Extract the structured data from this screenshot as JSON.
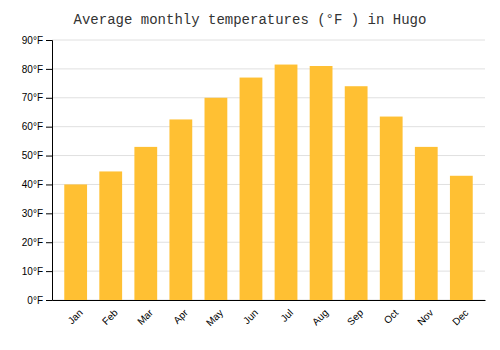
{
  "chart_data": {
    "type": "bar",
    "title": "Average monthly temperatures (°F ) in Hugo",
    "categories": [
      "Jan",
      "Feb",
      "Mar",
      "Apr",
      "May",
      "Jun",
      "Jul",
      "Aug",
      "Sep",
      "Oct",
      "Nov",
      "Dec"
    ],
    "values": [
      40,
      44.5,
      53,
      62.5,
      70,
      77,
      81.5,
      81,
      74,
      63.5,
      53,
      43
    ],
    "color": "#FFC033",
    "ylim": [
      0,
      90
    ],
    "yticks": [
      {
        "value": 0,
        "label": "0°F"
      },
      {
        "value": 10,
        "label": "10°F"
      },
      {
        "value": 20,
        "label": "20°F"
      },
      {
        "value": 30,
        "label": "30°F"
      },
      {
        "value": 40,
        "label": "40°F"
      },
      {
        "value": 50,
        "label": "50°F"
      },
      {
        "value": 60,
        "label": "60°F"
      },
      {
        "value": 70,
        "label": "70°F"
      },
      {
        "value": 80,
        "label": "80°F"
      },
      {
        "value": 90,
        "label": "90°F"
      }
    ],
    "grid": true
  }
}
